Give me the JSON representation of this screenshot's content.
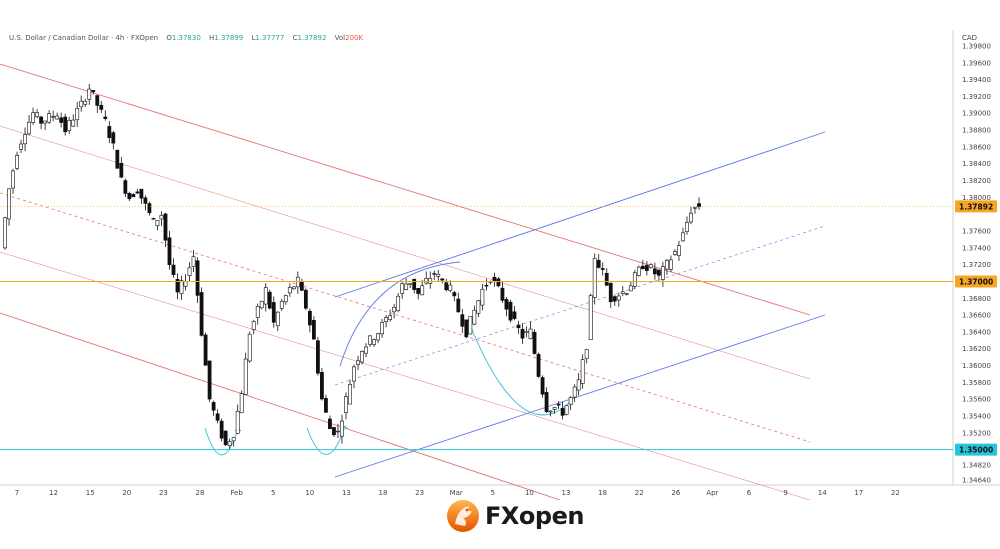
{
  "header": {
    "title": "U.S. Dollar / Canadian Dollar · 4h · FXOpen",
    "o_label": "O",
    "o_value": "1.37830",
    "h_label": "H",
    "h_value": "1.37899",
    "l_label": "L",
    "l_value": "1.37777",
    "c_label": "C",
    "c_value": "1.37892",
    "vol_label": "Vol",
    "vol_value": "200K"
  },
  "logo": {
    "text": "FXopen",
    "icon": "fxopen-dragon-icon"
  },
  "colors": {
    "up": "#26a69a",
    "down": "#ef5350",
    "candle": "#111111",
    "red_channel": "#e57373",
    "blue_channel": "#5b7be5",
    "level_orange": "#f5a623",
    "level_cyan": "#26c6da",
    "curve_blue": "#6b7fe0",
    "curve_cyan": "#40c4d8"
  },
  "chart_data": {
    "type": "candlestick",
    "instrument": "USDCAD",
    "timeframe": "4h",
    "price_unit": "CAD",
    "ylim": [
      1.3458,
      1.3993
    ],
    "y_ticks": [
      "1.39800",
      "1.39600",
      "1.39400",
      "1.39200",
      "1.39000",
      "1.38800",
      "1.38600",
      "1.38400",
      "1.38200",
      "1.38000",
      "1.37600",
      "1.37400",
      "1.37200",
      "1.36800",
      "1.36600",
      "1.36400",
      "1.36200",
      "1.36000",
      "1.35800",
      "1.35600",
      "1.35400",
      "1.35200",
      "1.34820",
      "1.34640"
    ],
    "x_ticks": [
      "7",
      "12",
      "15",
      "20",
      "23",
      "28",
      "Feb",
      "5",
      "10",
      "13",
      "18",
      "23",
      "Mar",
      "5",
      "10",
      "13",
      "18",
      "22",
      "26",
      "Apr",
      "6",
      "9",
      "14",
      "17",
      "22"
    ],
    "current_price": "1.37892",
    "levels": [
      {
        "label": "1.37000",
        "value": 1.37,
        "color": "orange"
      },
      {
        "label": "1.35000",
        "value": 1.35,
        "color": "cyan"
      }
    ],
    "path": [
      [
        0,
        1.374
      ],
      [
        1,
        1.381
      ],
      [
        2,
        1.3855
      ],
      [
        3,
        1.388
      ],
      [
        4,
        1.39
      ],
      [
        5,
        1.389
      ],
      [
        6,
        1.3895
      ],
      [
        7,
        1.39
      ],
      [
        8,
        1.388
      ],
      [
        9,
        1.3895
      ],
      [
        10,
        1.391
      ],
      [
        11,
        1.393
      ],
      [
        12,
        1.391
      ],
      [
        13,
        1.389
      ],
      [
        14,
        1.386
      ],
      [
        15,
        1.382
      ],
      [
        16,
        1.38
      ],
      [
        17,
        1.381
      ],
      [
        18,
        1.379
      ],
      [
        19,
        1.377
      ],
      [
        20,
        1.378
      ],
      [
        21,
        1.372
      ],
      [
        22,
        1.3685
      ],
      [
        23,
        1.3705
      ],
      [
        24,
        1.373
      ],
      [
        25,
        1.364
      ],
      [
        26,
        1.356
      ],
      [
        27,
        1.353
      ],
      [
        28,
        1.3505
      ],
      [
        29,
        1.352
      ],
      [
        30,
        1.357
      ],
      [
        31,
        1.364
      ],
      [
        32,
        1.3665
      ],
      [
        33,
        1.369
      ],
      [
        34,
        1.365
      ],
      [
        35,
        1.3675
      ],
      [
        36,
        1.369
      ],
      [
        37,
        1.37
      ],
      [
        38,
        1.367
      ],
      [
        39,
        1.363
      ],
      [
        40,
        1.356
      ],
      [
        41,
        1.3525
      ],
      [
        42,
        1.352
      ],
      [
        43,
        1.356
      ],
      [
        44,
        1.36
      ],
      [
        45,
        1.362
      ],
      [
        46,
        1.363
      ],
      [
        47,
        1.364
      ],
      [
        48,
        1.3655
      ],
      [
        49,
        1.367
      ],
      [
        50,
        1.3695
      ],
      [
        51,
        1.37
      ],
      [
        52,
        1.3685
      ],
      [
        53,
        1.37
      ],
      [
        54,
        1.371
      ],
      [
        55,
        1.37
      ],
      [
        56,
        1.369
      ],
      [
        57,
        1.3665
      ],
      [
        58,
        1.364
      ],
      [
        59,
        1.3665
      ],
      [
        60,
        1.369
      ],
      [
        61,
        1.3705
      ],
      [
        62,
        1.369
      ],
      [
        63,
        1.367
      ],
      [
        64,
        1.365
      ],
      [
        65,
        1.3635
      ],
      [
        66,
        1.364
      ],
      [
        67,
        1.359
      ],
      [
        68,
        1.355
      ],
      [
        69,
        1.355
      ],
      [
        70,
        1.3545
      ],
      [
        71,
        1.356
      ],
      [
        72,
        1.358
      ],
      [
        73,
        1.3625
      ],
      [
        74,
        1.373
      ],
      [
        75,
        1.371
      ],
      [
        76,
        1.368
      ],
      [
        77,
        1.3685
      ],
      [
        78,
        1.369
      ],
      [
        79,
        1.3705
      ],
      [
        80,
        1.372
      ],
      [
        81,
        1.3715
      ],
      [
        82,
        1.3705
      ],
      [
        83,
        1.372
      ],
      [
        84,
        1.3735
      ],
      [
        85,
        1.3755
      ],
      [
        86,
        1.3785
      ]
    ]
  }
}
